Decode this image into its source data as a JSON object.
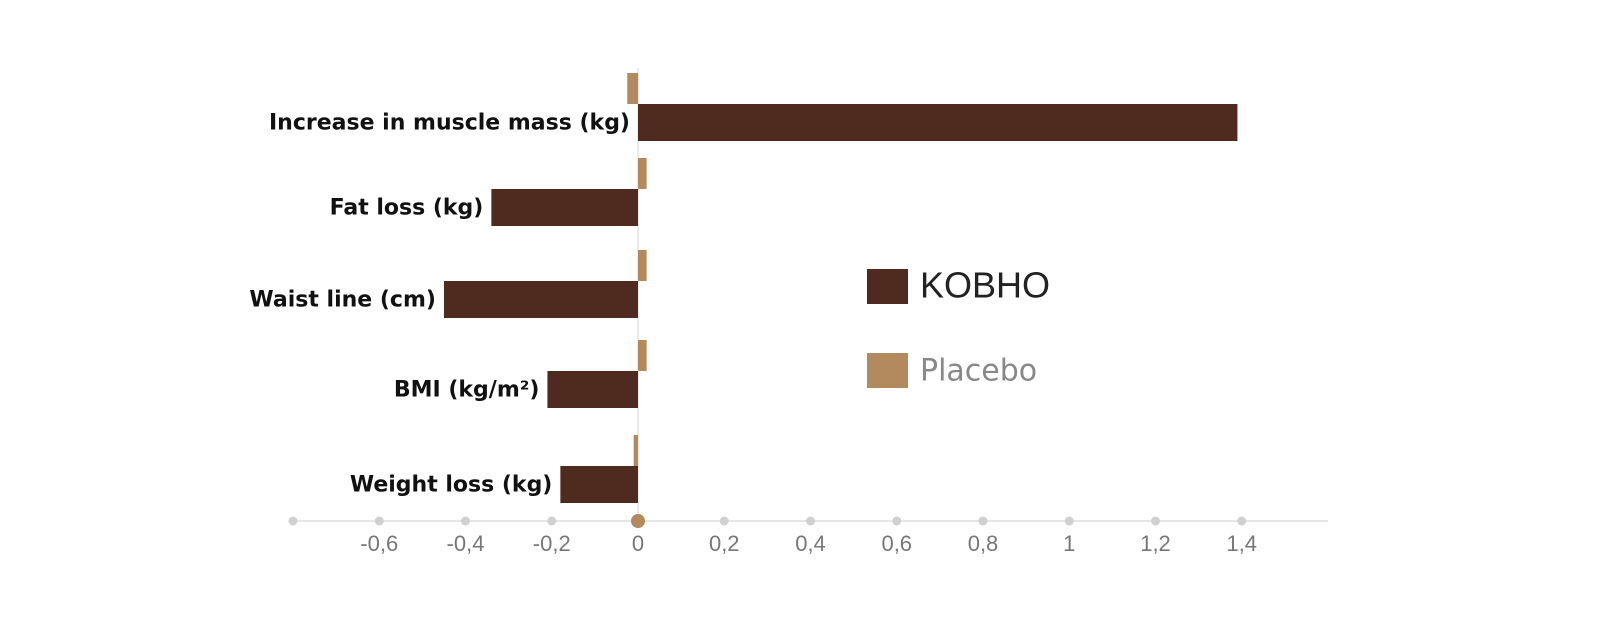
{
  "chart_data": {
    "type": "bar",
    "orientation": "horizontal",
    "categories": [
      "Increase in muscle mass (kg)",
      "Fat loss (kg)",
      "Waist line (cm)",
      "BMI (kg/m²)",
      "Weight loss (kg)"
    ],
    "series": [
      {
        "name": "KOBHO",
        "color": "#4f2a1e",
        "values": [
          1.39,
          -0.34,
          -0.45,
          -0.21,
          -0.18
        ]
      },
      {
        "name": "Placebo",
        "color": "#b38a5e",
        "values": [
          -0.025,
          0.02,
          0.02,
          0.02,
          -0.01
        ]
      }
    ],
    "xlim": [
      -0.8,
      1.6
    ],
    "xticks": [
      {
        "value": -0.6,
        "label": "-0,6"
      },
      {
        "value": -0.4,
        "label": "-0,4"
      },
      {
        "value": -0.2,
        "label": "-0,2"
      },
      0,
      {
        "value": 0.2,
        "label": "0,2"
      },
      {
        "value": 0.4,
        "label": "0,4"
      },
      {
        "value": 0.6,
        "label": "0,6"
      },
      {
        "value": 0.8,
        "label": "0,8"
      },
      1,
      {
        "value": 1.2,
        "label": "1,2"
      },
      {
        "value": 1.4,
        "label": "1,4"
      }
    ],
    "legend": "center-right",
    "grid": false
  }
}
